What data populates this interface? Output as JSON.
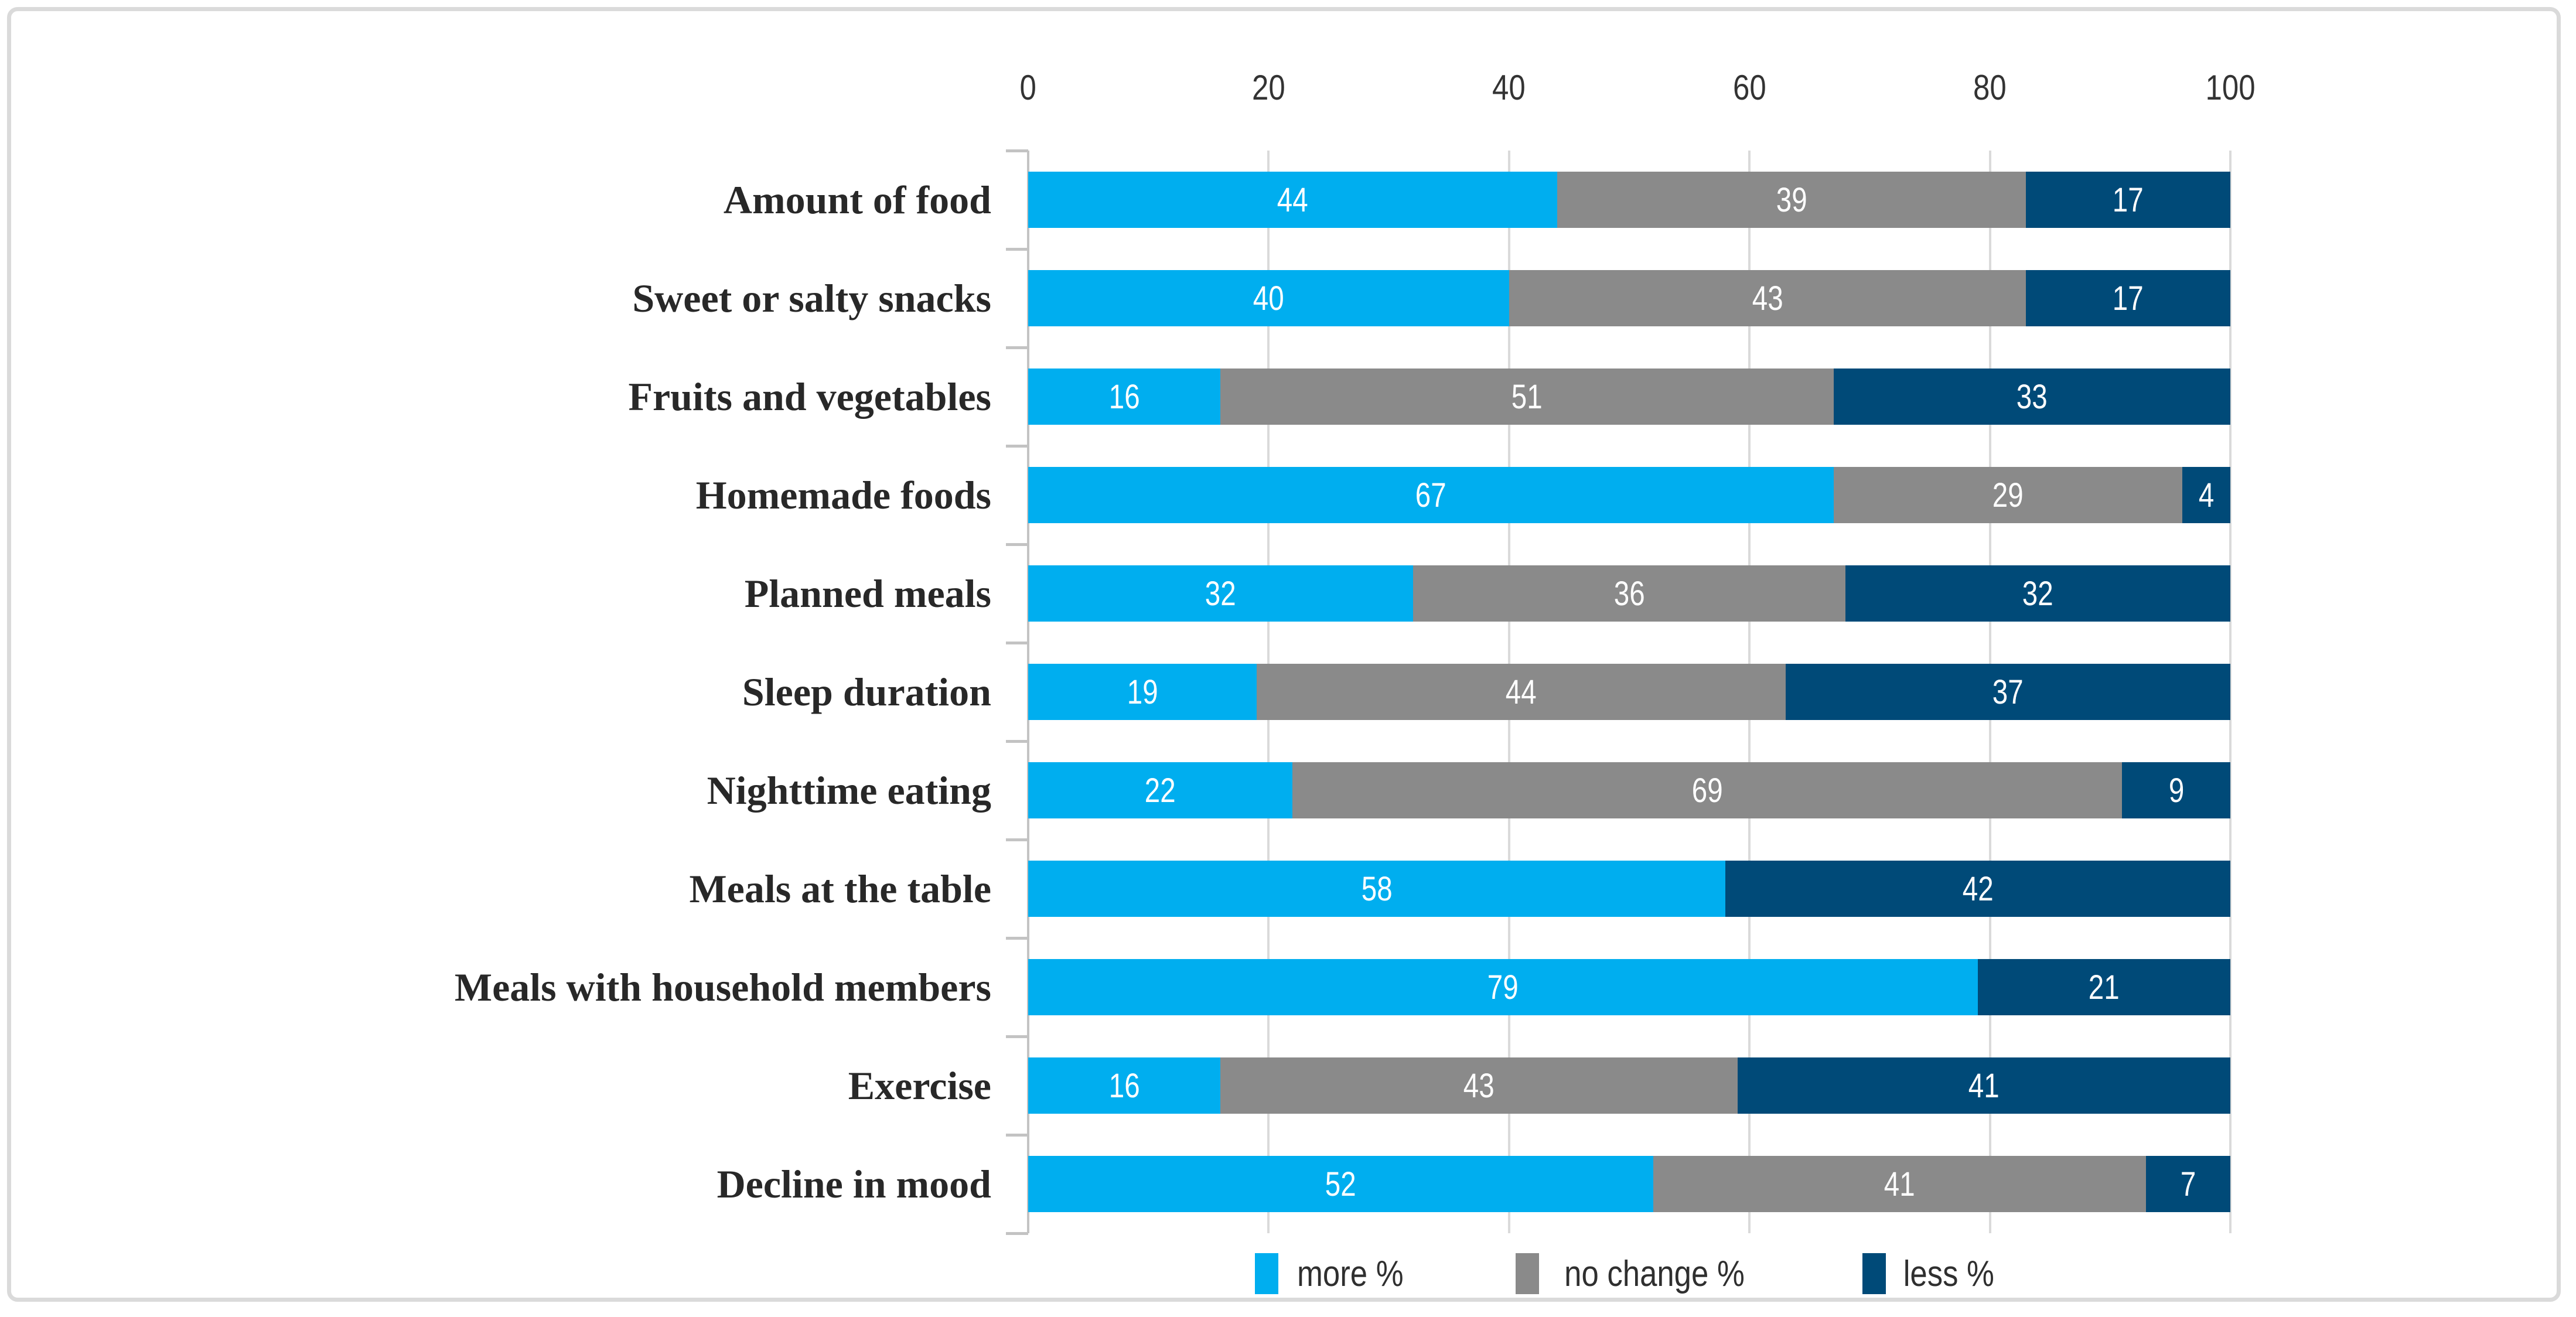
{
  "chart_data": {
    "type": "bar",
    "orientation": "horizontal",
    "stacked": true,
    "title": "",
    "categories": [
      "Amount of food",
      "Sweet or salty snacks",
      "Fruits and vegetables",
      "Homemade foods",
      "Planned meals",
      "Sleep duration",
      "Nighttime eating",
      "Meals at the table",
      "Meals with household members",
      "Exercise",
      "Decline in mood"
    ],
    "series": [
      {
        "name": "more %",
        "color": "#00AEEF",
        "values": [
          44,
          40,
          16,
          67,
          32,
          19,
          22,
          58,
          79,
          16,
          52
        ]
      },
      {
        "name": "no change %",
        "color": "#8A8A8A",
        "values": [
          39,
          43,
          51,
          29,
          36,
          44,
          69,
          0,
          0,
          43,
          41
        ]
      },
      {
        "name": "less %",
        "color": "#004A78",
        "values": [
          17,
          17,
          33,
          4,
          32,
          37,
          9,
          42,
          21,
          41,
          7
        ]
      }
    ],
    "x_axis": {
      "position": "top",
      "range": [
        0,
        100
      ],
      "ticks": [
        "0",
        "20",
        "40",
        "60",
        "80",
        "100"
      ]
    },
    "legend": {
      "position": "bottom",
      "items": [
        "more %",
        "no change %",
        "less %"
      ]
    },
    "grid": true,
    "value_labels": "inside-white"
  },
  "colors": {
    "grid": "#DADADA",
    "axis_line": "#C3C3C3",
    "frame_border": "#DADADA",
    "category_text": "#282828",
    "axis_text": "#333333",
    "value_text": "#FFFFFF",
    "background": "#FFFFFF"
  }
}
